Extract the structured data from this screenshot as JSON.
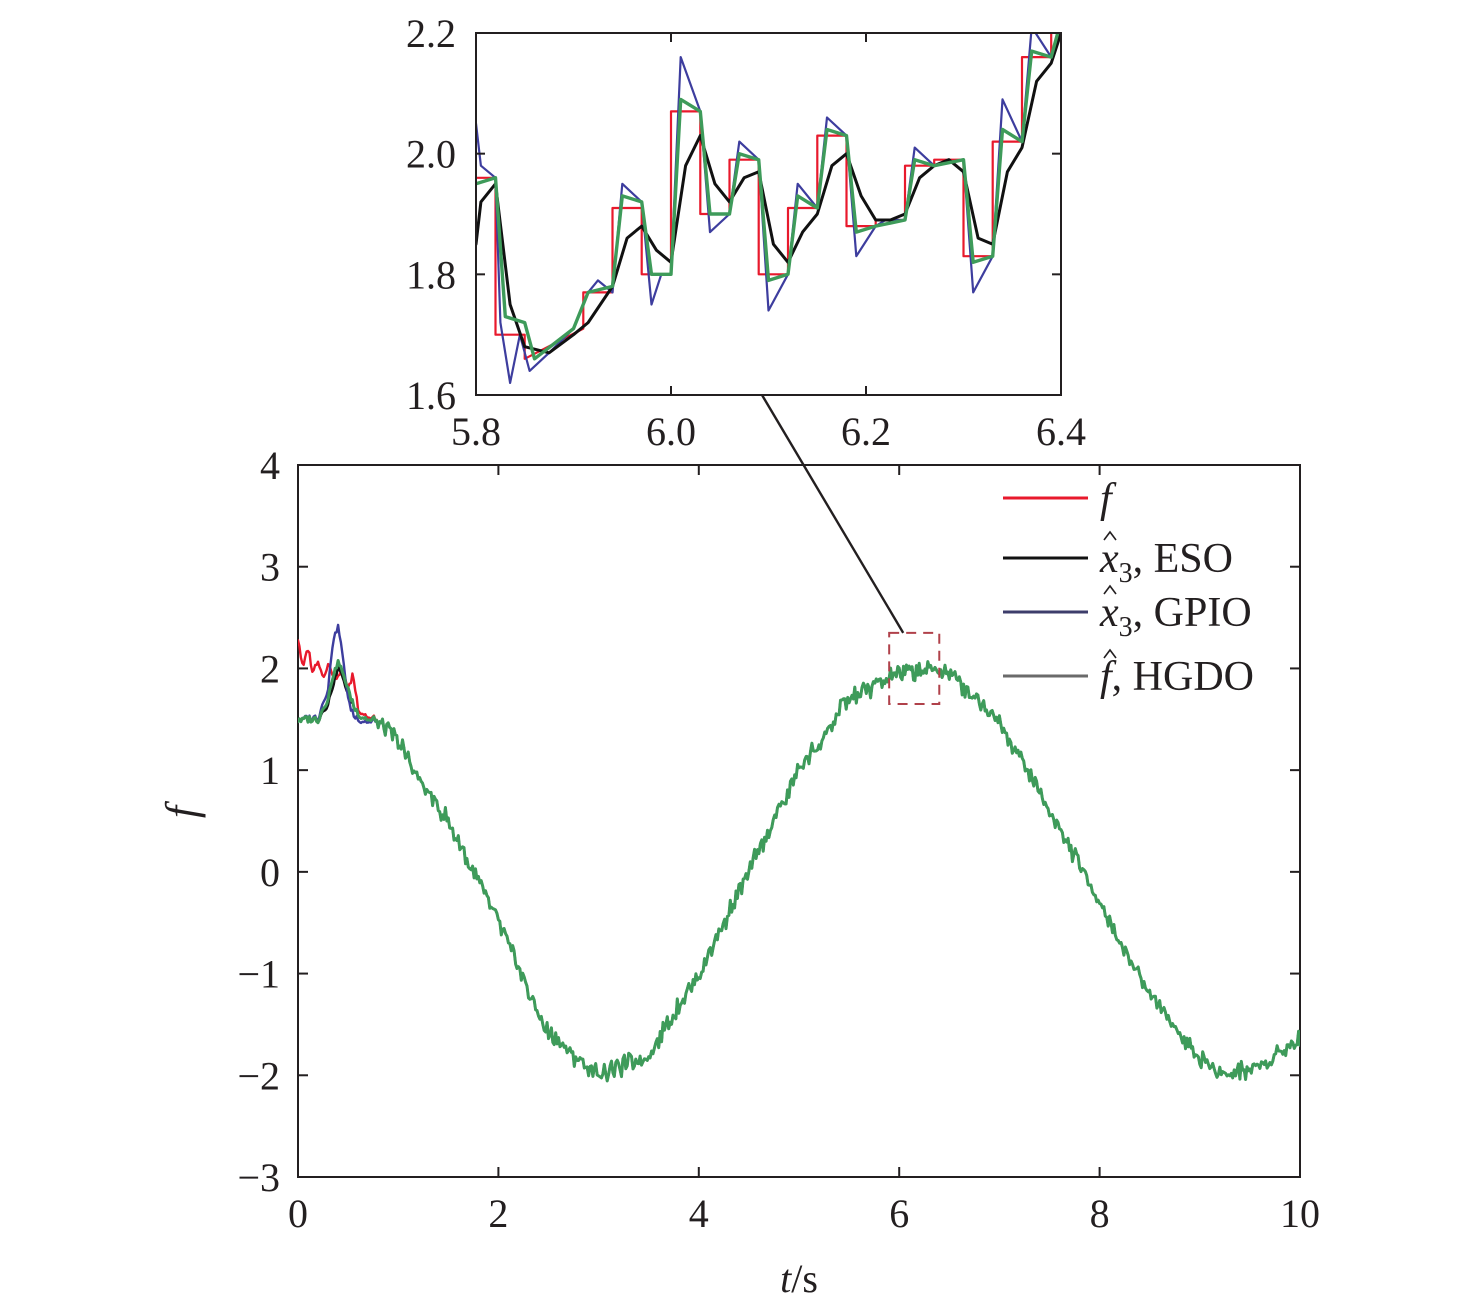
{
  "chart_data": [
    {
      "id": "main",
      "type": "line",
      "xlabel_var": "t",
      "xlabel_unit": "/s",
      "ylabel": "f",
      "xlim": [
        0,
        10
      ],
      "ylim": [
        -3,
        4
      ],
      "xticks": [
        0,
        2,
        4,
        6,
        8,
        10
      ],
      "yticks": [
        -3,
        -2,
        -1,
        0,
        1,
        2,
        3,
        4
      ],
      "ytick_labels": [
        "−3",
        "−2",
        "−1",
        "0",
        "1",
        "2",
        "3",
        "4"
      ],
      "grid": false,
      "legend_position": "top-right",
      "legend": [
        {
          "symbol": "f",
          "sub": "",
          "hat": false,
          "text": "",
          "color": "#e8192c"
        },
        {
          "symbol": "x",
          "sub": "3",
          "hat": true,
          "text": ", ESO",
          "color": "#111111"
        },
        {
          "symbol": "x",
          "sub": "3",
          "hat": true,
          "text": ", GPIO",
          "color": "#3d3d6b"
        },
        {
          "symbol": "f",
          "sub": "",
          "hat": true,
          "text": ", HGDO",
          "color": "#6a6a6a"
        }
      ],
      "series": [
        {
          "color": "#e8192c",
          "x": [
            0,
            0.05,
            0.1,
            0.15,
            0.2,
            0.25,
            0.3,
            0.35,
            0.4,
            0.45,
            0.5,
            0.55,
            0.6,
            0.8,
            1.0,
            1.2,
            1.5,
            2.0,
            2.5,
            3.0,
            3.5,
            4.0,
            4.5,
            5.0,
            5.5,
            6.0,
            6.3,
            6.5,
            7.0,
            7.5,
            8.0,
            8.5,
            9.0,
            9.3,
            9.6,
            10.0
          ],
          "y": [
            2.3,
            2.0,
            2.2,
            1.95,
            2.1,
            1.9,
            2.05,
            1.95,
            1.9,
            2.0,
            1.8,
            1.95,
            1.6,
            1.45,
            1.3,
            0.9,
            0.5,
            -0.5,
            -1.6,
            -2.0,
            -1.8,
            -1.0,
            0.0,
            1.0,
            1.7,
            1.95,
            2.0,
            1.95,
            1.5,
            0.6,
            -0.3,
            -1.2,
            -1.85,
            -2.0,
            -1.9,
            -1.65
          ]
        },
        {
          "color": "#111111",
          "x": [
            0,
            0.2,
            0.3,
            0.35,
            0.4,
            0.45,
            0.5,
            0.55,
            0.6,
            0.8,
            1.0,
            1.2,
            1.5,
            2.0,
            2.5,
            3.0,
            3.5,
            4.0,
            4.5,
            5.0,
            5.5,
            6.0,
            6.3,
            6.5,
            7.0,
            7.5,
            8.0,
            8.5,
            9.0,
            9.3,
            9.6,
            10.0
          ],
          "y": [
            1.5,
            1.5,
            1.65,
            1.85,
            2.0,
            1.9,
            1.75,
            1.65,
            1.55,
            1.45,
            1.3,
            0.9,
            0.5,
            -0.5,
            -1.6,
            -2.0,
            -1.8,
            -1.0,
            0.0,
            1.0,
            1.7,
            1.95,
            2.0,
            1.95,
            1.5,
            0.6,
            -0.3,
            -1.2,
            -1.85,
            -2.0,
            -1.9,
            -1.65
          ]
        },
        {
          "color": "#3d3d9e",
          "x": [
            0,
            0.2,
            0.3,
            0.35,
            0.4,
            0.45,
            0.5,
            0.55,
            0.6,
            0.8,
            1.0,
            1.2,
            1.5,
            2.0,
            2.5,
            3.0,
            3.5,
            4.0,
            4.5,
            5.0,
            5.5,
            6.0,
            6.3,
            6.5,
            7.0,
            7.5,
            8.0,
            8.5,
            9.0,
            9.3,
            9.6,
            10.0
          ],
          "y": [
            1.5,
            1.52,
            1.8,
            2.3,
            2.4,
            2.1,
            1.7,
            1.55,
            1.5,
            1.45,
            1.3,
            0.9,
            0.5,
            -0.5,
            -1.6,
            -2.0,
            -1.8,
            -1.0,
            0.0,
            1.0,
            1.7,
            1.95,
            2.0,
            1.95,
            1.5,
            0.6,
            -0.3,
            -1.2,
            -1.85,
            -2.0,
            -1.9,
            -1.65
          ]
        },
        {
          "color": "#3e9b5a",
          "x": [
            0,
            0.2,
            0.3,
            0.35,
            0.4,
            0.45,
            0.5,
            0.55,
            0.6,
            0.8,
            1.0,
            1.2,
            1.5,
            2.0,
            2.5,
            3.0,
            3.5,
            4.0,
            4.5,
            5.0,
            5.5,
            6.0,
            6.3,
            6.5,
            7.0,
            7.5,
            8.0,
            8.5,
            9.0,
            9.3,
            9.6,
            10.0
          ],
          "y": [
            1.5,
            1.5,
            1.7,
            1.95,
            2.05,
            1.95,
            1.8,
            1.65,
            1.55,
            1.45,
            1.3,
            0.9,
            0.5,
            -0.5,
            -1.6,
            -2.0,
            -1.8,
            -1.0,
            0.0,
            1.0,
            1.7,
            1.95,
            2.0,
            1.95,
            1.5,
            0.6,
            -0.3,
            -1.2,
            -1.85,
            -2.0,
            -1.9,
            -1.65
          ]
        }
      ],
      "zoom_box": {
        "x": [
          5.9,
          6.4
        ],
        "y": [
          1.65,
          2.35
        ],
        "color": "#b0414a"
      }
    },
    {
      "id": "inset",
      "type": "line",
      "xlim": [
        5.8,
        6.4
      ],
      "ylim": [
        1.6,
        2.2
      ],
      "xticks": [
        5.8,
        6.0,
        6.2,
        6.4
      ],
      "xtick_labels": [
        "5.8",
        "6.0",
        "6.2",
        "6.4"
      ],
      "yticks": [
        1.6,
        1.8,
        2.0,
        2.2
      ],
      "ytick_labels": [
        "1.6",
        "1.8",
        "2.0",
        "2.2"
      ],
      "grid": false,
      "series": [
        {
          "color": "#e8192c",
          "x": [
            5.8,
            5.82,
            5.82,
            5.85,
            5.85,
            5.91,
            5.91,
            5.94,
            5.94,
            5.97,
            5.97,
            6.0,
            6.0,
            6.03,
            6.03,
            6.06,
            6.06,
            6.09,
            6.09,
            6.12,
            6.12,
            6.15,
            6.15,
            6.18,
            6.18,
            6.21,
            6.21,
            6.24,
            6.24,
            6.27,
            6.27,
            6.3,
            6.3,
            6.33,
            6.33,
            6.36,
            6.36,
            6.39,
            6.39,
            6.4
          ],
          "y": [
            1.96,
            1.96,
            1.7,
            1.7,
            1.66,
            1.71,
            1.77,
            1.77,
            1.91,
            1.91,
            1.8,
            1.8,
            2.07,
            2.07,
            1.9,
            1.9,
            1.99,
            1.99,
            1.8,
            1.8,
            1.91,
            1.91,
            2.03,
            2.03,
            1.88,
            1.88,
            1.89,
            1.89,
            1.98,
            1.98,
            1.99,
            1.99,
            1.83,
            1.83,
            2.02,
            2.02,
            2.16,
            2.16,
            2.22,
            2.22
          ]
        },
        {
          "color": "#111111",
          "x": [
            5.8,
            5.805,
            5.82,
            5.835,
            5.85,
            5.875,
            5.9,
            5.915,
            5.94,
            5.955,
            5.97,
            5.985,
            6.0,
            6.015,
            6.03,
            6.045,
            6.06,
            6.075,
            6.09,
            6.105,
            6.12,
            6.135,
            6.15,
            6.165,
            6.18,
            6.195,
            6.21,
            6.225,
            6.24,
            6.255,
            6.27,
            6.285,
            6.3,
            6.315,
            6.33,
            6.345,
            6.36,
            6.375,
            6.39,
            6.4
          ],
          "y": [
            1.85,
            1.92,
            1.95,
            1.75,
            1.68,
            1.67,
            1.7,
            1.72,
            1.78,
            1.86,
            1.88,
            1.84,
            1.82,
            1.98,
            2.03,
            1.95,
            1.92,
            1.96,
            1.97,
            1.85,
            1.82,
            1.87,
            1.9,
            1.98,
            2.0,
            1.93,
            1.89,
            1.89,
            1.9,
            1.96,
            1.98,
            1.99,
            1.97,
            1.86,
            1.85,
            1.97,
            2.01,
            2.12,
            2.15,
            2.2
          ]
        },
        {
          "color": "#3d3d9e",
          "x": [
            5.8,
            5.805,
            5.82,
            5.825,
            5.835,
            5.845,
            5.855,
            5.875,
            5.9,
            5.915,
            5.925,
            5.94,
            5.95,
            5.97,
            5.98,
            5.99,
            6.0,
            6.01,
            6.03,
            6.04,
            6.06,
            6.07,
            6.09,
            6.1,
            6.12,
            6.13,
            6.15,
            6.16,
            6.18,
            6.19,
            6.21,
            6.22,
            6.24,
            6.25,
            6.27,
            6.3,
            6.31,
            6.33,
            6.34,
            6.36,
            6.37,
            6.39,
            6.4
          ],
          "y": [
            2.05,
            1.98,
            1.96,
            1.72,
            1.62,
            1.7,
            1.64,
            1.67,
            1.71,
            1.77,
            1.79,
            1.77,
            1.95,
            1.92,
            1.75,
            1.8,
            1.8,
            2.16,
            2.07,
            1.87,
            1.9,
            2.02,
            1.99,
            1.74,
            1.8,
            1.95,
            1.91,
            2.06,
            2.03,
            1.83,
            1.88,
            1.89,
            1.89,
            2.01,
            1.98,
            1.99,
            1.77,
            1.83,
            2.09,
            2.02,
            2.21,
            2.16,
            2.22
          ]
        },
        {
          "color": "#3e9b5a",
          "x": [
            5.8,
            5.82,
            5.83,
            5.85,
            5.86,
            5.9,
            5.915,
            5.94,
            5.95,
            5.97,
            5.98,
            6.0,
            6.01,
            6.03,
            6.04,
            6.06,
            6.07,
            6.09,
            6.1,
            6.12,
            6.13,
            6.15,
            6.16,
            6.18,
            6.19,
            6.21,
            6.24,
            6.25,
            6.27,
            6.3,
            6.31,
            6.33,
            6.34,
            6.36,
            6.37,
            6.39,
            6.4
          ],
          "y": [
            1.95,
            1.96,
            1.73,
            1.72,
            1.66,
            1.71,
            1.77,
            1.78,
            1.93,
            1.92,
            1.8,
            1.8,
            2.09,
            2.07,
            1.9,
            1.9,
            2.0,
            1.99,
            1.79,
            1.8,
            1.93,
            1.91,
            2.04,
            2.03,
            1.87,
            1.88,
            1.89,
            1.99,
            1.98,
            1.99,
            1.82,
            1.83,
            2.04,
            2.02,
            2.17,
            2.16,
            2.22
          ]
        }
      ]
    }
  ]
}
